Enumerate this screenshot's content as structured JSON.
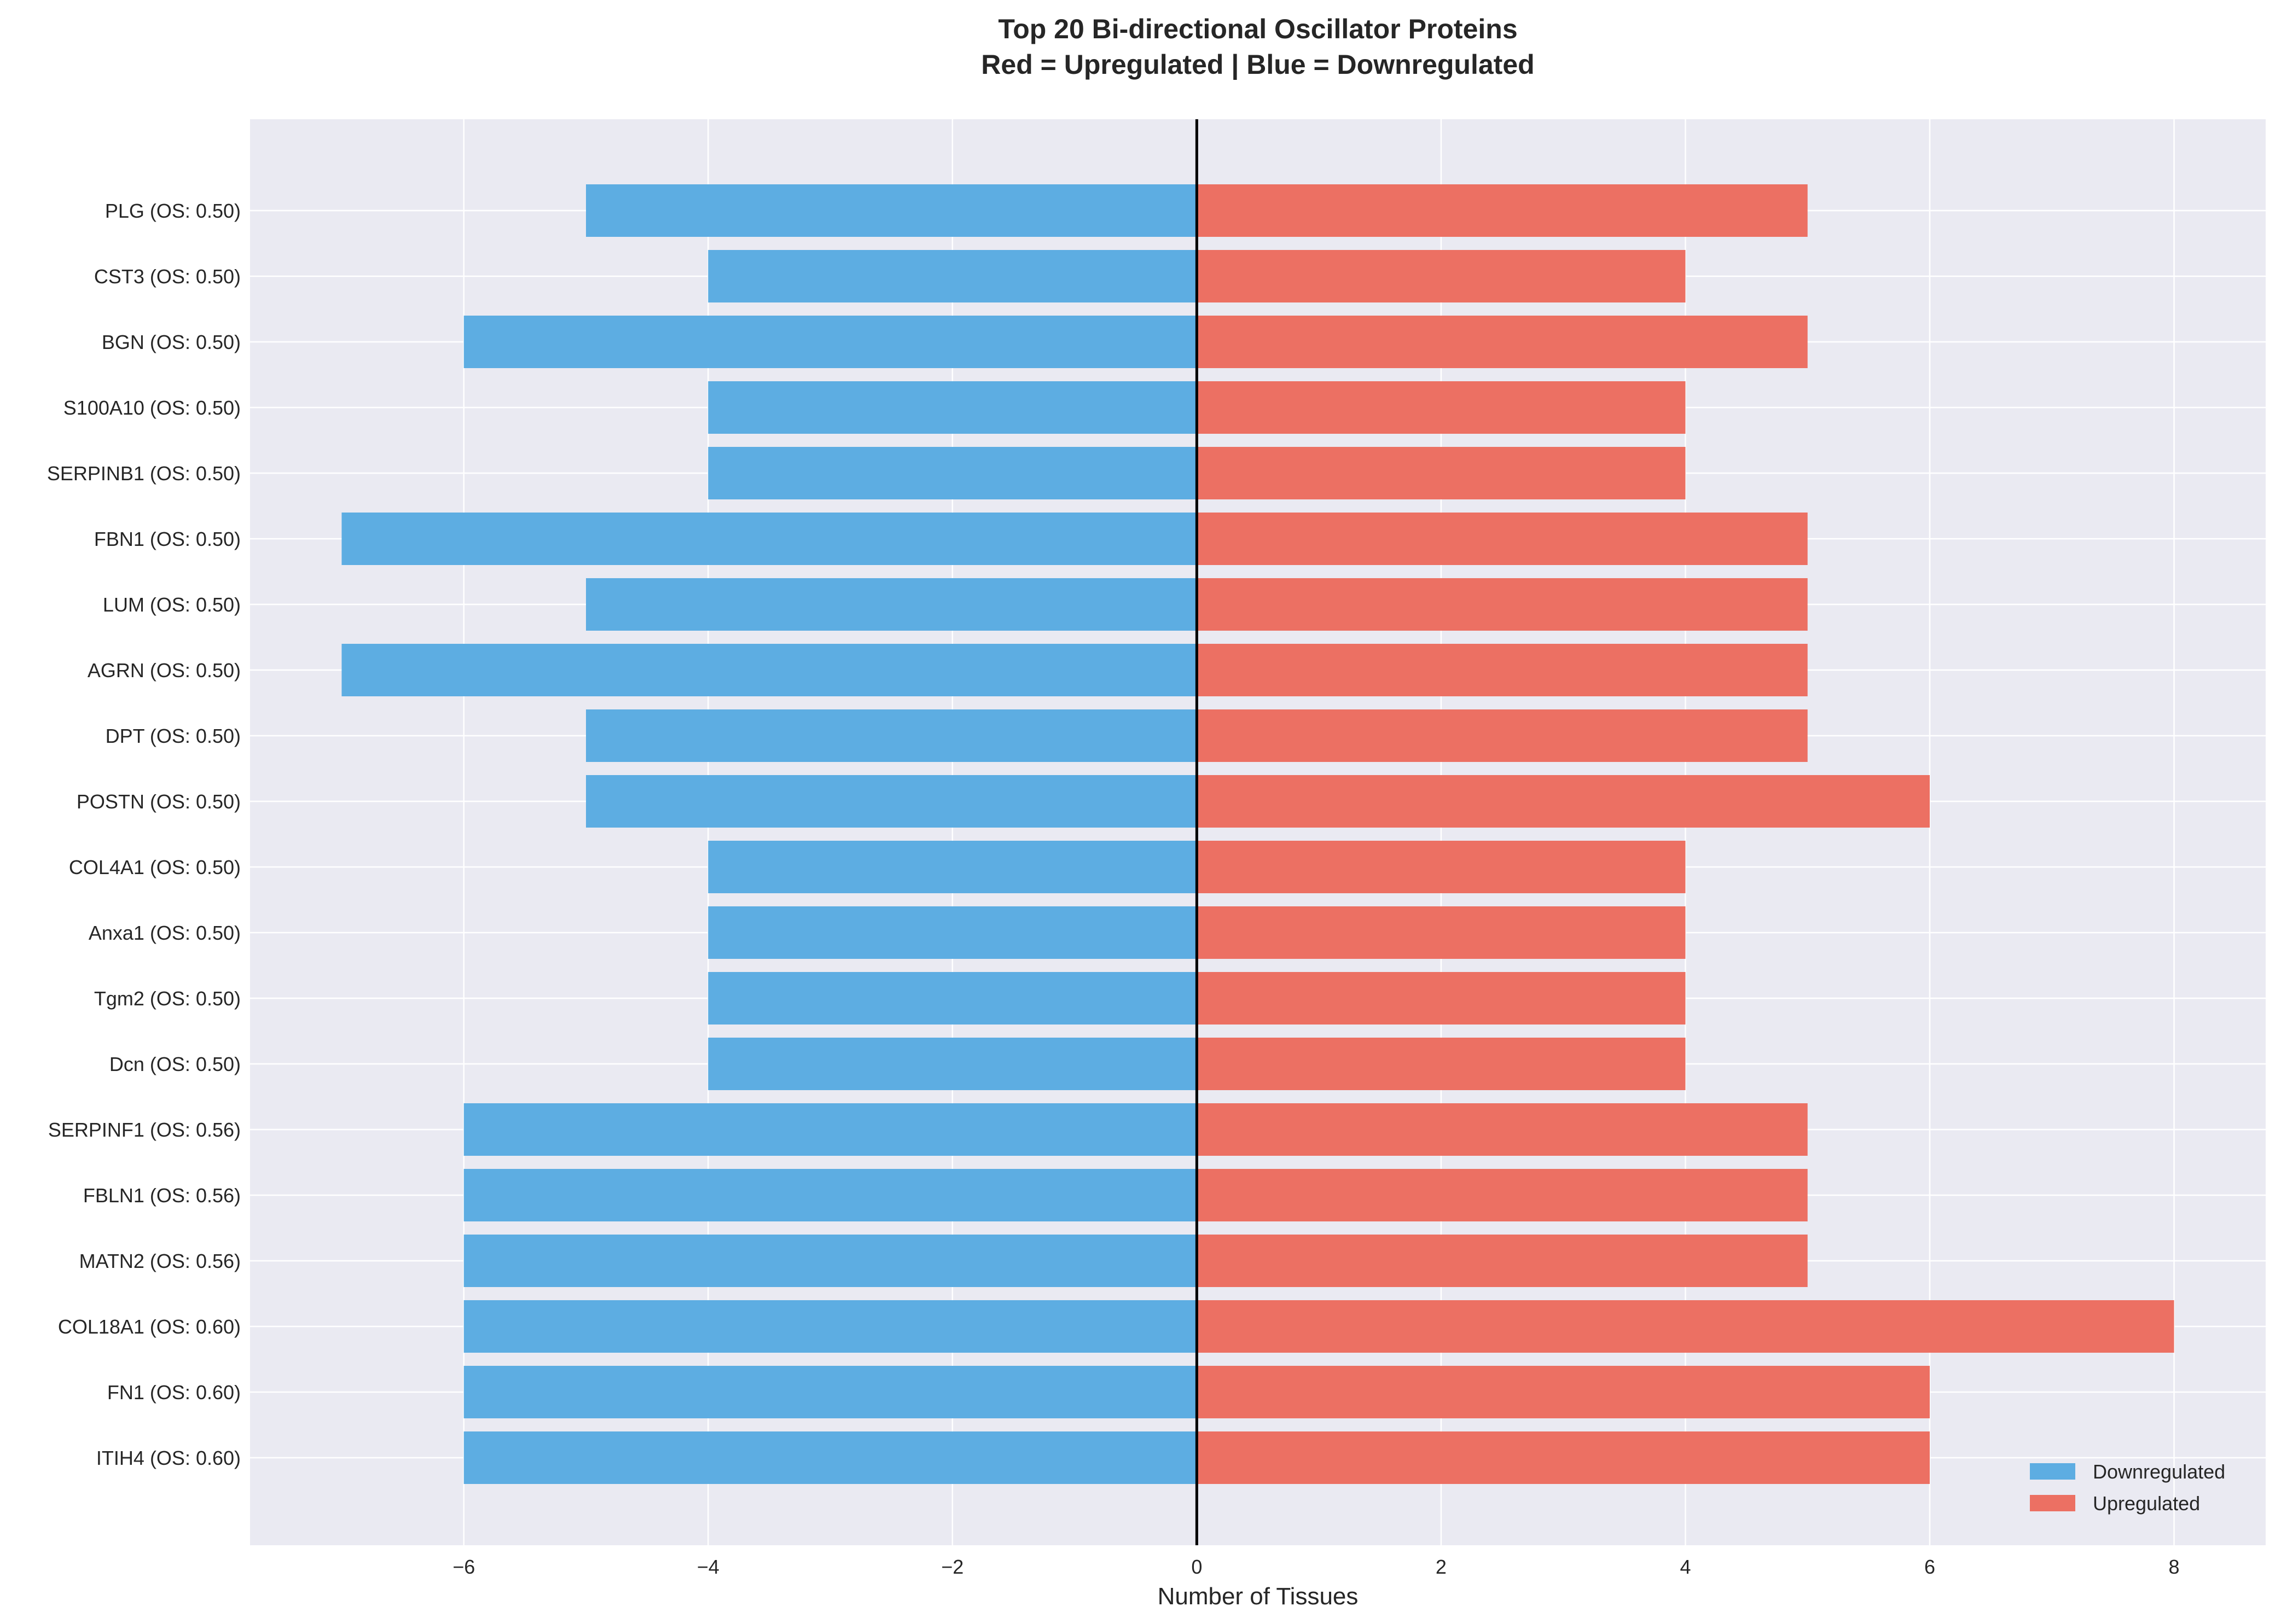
{
  "chart_data": {
    "type": "bar",
    "orientation": "horizontal",
    "title": "Top 20 Bi-directional Oscillator Proteins",
    "subtitle": "Red = Upregulated | Blue = Downregulated",
    "xlabel": "Number of Tissues",
    "ylabel": "",
    "xlim": [
      -7.75,
      8.75
    ],
    "x_ticks": [
      -6,
      -4,
      -2,
      0,
      2,
      4,
      6,
      8
    ],
    "grid": true,
    "legend_position": "bottom-right",
    "categories": [
      "PLG (OS: 0.50)",
      "CST3 (OS: 0.50)",
      "BGN (OS: 0.50)",
      "S100A10 (OS: 0.50)",
      "SERPINB1 (OS: 0.50)",
      "FBN1 (OS: 0.50)",
      "LUM (OS: 0.50)",
      "AGRN (OS: 0.50)",
      "DPT (OS: 0.50)",
      "POSTN (OS: 0.50)",
      "COL4A1 (OS: 0.50)",
      "Anxa1 (OS: 0.50)",
      "Tgm2 (OS: 0.50)",
      "Dcn (OS: 0.50)",
      "SERPINF1 (OS: 0.56)",
      "FBLN1 (OS: 0.56)",
      "MATN2 (OS: 0.56)",
      "COL18A1 (OS: 0.60)",
      "FN1 (OS: 0.60)",
      "ITIH4 (OS: 0.60)"
    ],
    "series": [
      {
        "name": "Downregulated",
        "color": "#5dade2",
        "values": [
          -5,
          -4,
          -6,
          -4,
          -4,
          -7,
          -5,
          -7,
          -5,
          -5,
          -4,
          -4,
          -4,
          -4,
          -6,
          -6,
          -6,
          -6,
          -6,
          -6
        ]
      },
      {
        "name": "Upregulated",
        "color": "#ec7063",
        "values": [
          5,
          4,
          5,
          4,
          4,
          5,
          5,
          5,
          5,
          6,
          4,
          4,
          4,
          4,
          5,
          5,
          5,
          8,
          6,
          6
        ]
      }
    ]
  },
  "colors": {
    "plot_background": "#eaeaf2",
    "grid": "#ffffff",
    "zero_line": "#000000",
    "text": "#262626"
  }
}
